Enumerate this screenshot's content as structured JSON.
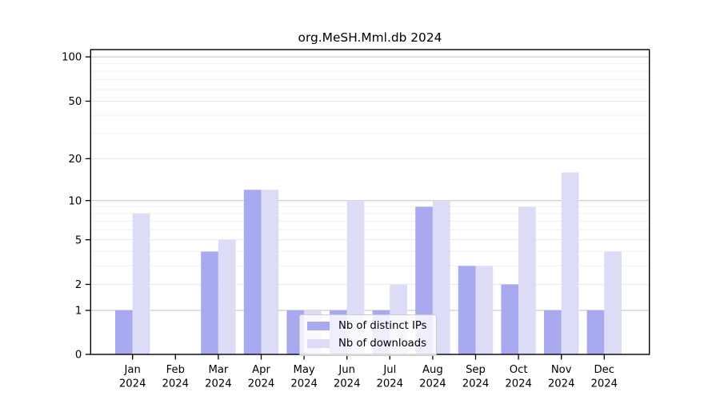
{
  "chart_data": {
    "type": "bar",
    "title": "org.MeSH.Mml.db 2024",
    "categories": [
      "Jan",
      "Feb",
      "Mar",
      "Apr",
      "May",
      "Jun",
      "Jul",
      "Aug",
      "Sep",
      "Oct",
      "Nov",
      "Dec"
    ],
    "year_label": "2024",
    "series": [
      {
        "name": "Nb of distinct IPs",
        "color": "#a9a9f0",
        "values": [
          1,
          0,
          4,
          12,
          1,
          1,
          1,
          9,
          3,
          2,
          1,
          1
        ]
      },
      {
        "name": "Nb of downloads",
        "color": "#dcdcf7",
        "values": [
          8,
          0,
          5,
          12,
          1,
          10,
          2,
          10,
          3,
          9,
          16,
          4
        ]
      }
    ],
    "yticks": [
      0,
      1,
      2,
      5,
      10,
      20,
      50,
      100
    ],
    "ylim": [
      0,
      100
    ],
    "yscale": "log1p",
    "grid": true,
    "legend_position": "lower center inside"
  }
}
